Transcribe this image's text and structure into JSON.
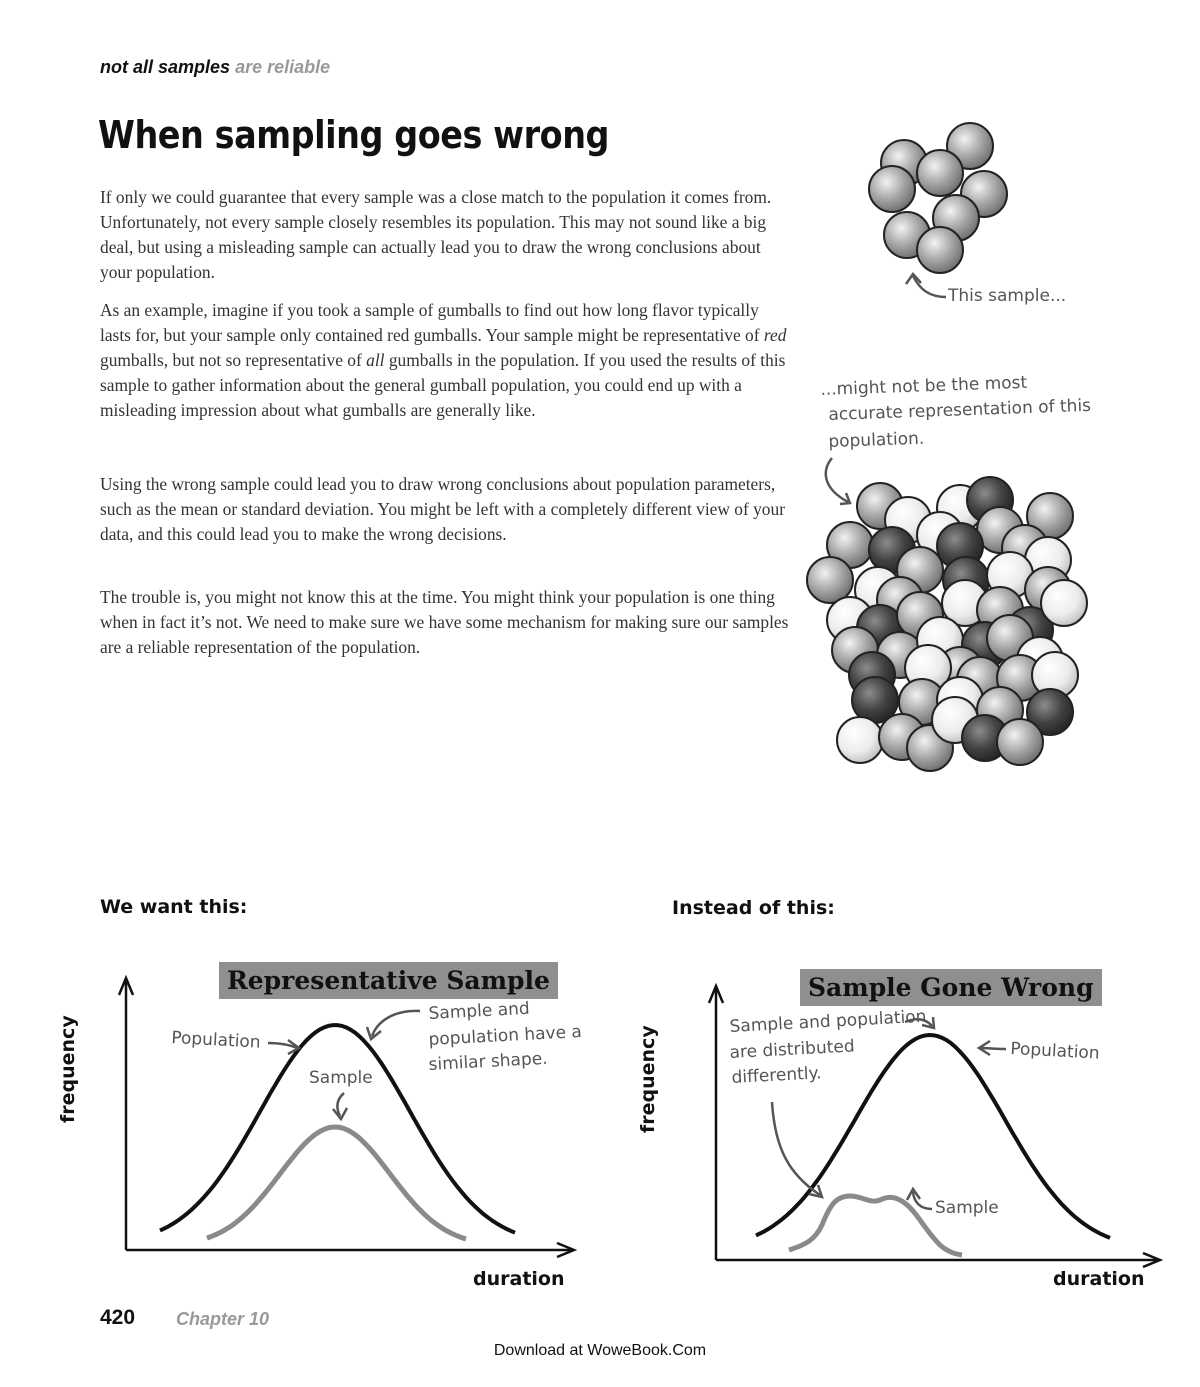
{
  "header": {
    "running_head_strong": "not all samples",
    "running_head_light": "are reliable"
  },
  "title": "When sampling goes wrong",
  "paragraphs": {
    "p1": "If only we could guarantee that every sample was a close match to the population it comes from. Unfortunately, not every sample closely resembles its population. This may not sound like a big deal, but using a misleading sample can actually lead you to draw the wrong conclusions about your population.",
    "p2_a": "As an example, imagine if you took a sample of gumballs to find out how long flavor typically lasts for, but your sample only contained red gumballs. Your sample might be representative of ",
    "p2_red": "red",
    "p2_b": " gumballs, but not so representative of ",
    "p2_all": "all",
    "p2_c": " gumballs in the population. If you used the results of this sample to gather information about the general gumball population, you could end up with a misleading impression about what gumballs are generally like.",
    "p3": "Using the wrong sample could lead you to draw wrong conclusions about population parameters, such as the mean or standard deviation. You might be left with a completely different view of your data, and this could lead you to make the wrong decisions.",
    "p4": "The trouble is, you might not know this at the time. You might think your population is one thing when in fact it’s not. We need to make sure we have some mechanism for making sure our samples are a reliable representation of the population."
  },
  "illustration": {
    "sample_note": "This sample...",
    "population_note_1": "...might not be the most",
    "population_note_2": "accurate representation of this",
    "population_note_3": "population."
  },
  "charts": {
    "left": {
      "section_label": "We want this:",
      "title": "Representative Sample",
      "ylabel": "frequency",
      "xlabel": "duration",
      "note_population": "Population",
      "note_sample": "Sample",
      "note_shape_1": "Sample and",
      "note_shape_2": "population have a",
      "note_shape_3": "similar shape."
    },
    "right": {
      "section_label": "Instead of this:",
      "title": "Sample Gone Wrong",
      "ylabel": "frequency",
      "xlabel": "duration",
      "note_population": "Population",
      "note_sample": "Sample",
      "note_diff_1": "Sample and population",
      "note_diff_2": "are distributed",
      "note_diff_3": "differently."
    }
  },
  "footer": {
    "page_number": "420",
    "chapter": "Chapter 10",
    "download": "Download at WoweBook.Com"
  },
  "colors": {
    "dark_gumball": "#3a3a3a",
    "mid_gumball": "#9a9a9a",
    "light_gumball": "#e8e8e8",
    "sample_curve": "#8a8a8a",
    "population_curve": "#111111"
  }
}
